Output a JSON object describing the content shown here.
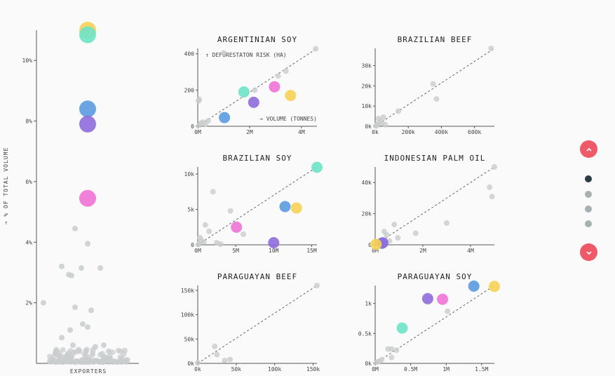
{
  "colors": {
    "yellow": "#f7d154",
    "teal": "#6ee3c6",
    "blue": "#5a9ae0",
    "purple": "#8e6bdb",
    "pink": "#ee72d6",
    "grey": "#c9cccd",
    "accent": "#ef5a68",
    "dot_active": "#2e3a42",
    "dot_inactive": "#a9b0b2"
  },
  "nav": {
    "up_icon": "chevron-up-icon",
    "down_icon": "chevron-down-icon",
    "active_index": 0,
    "dots": 4
  },
  "chart_data": [
    {
      "id": "overview",
      "type": "scatter",
      "title": "",
      "xlabel": "EXPORTERS",
      "ylabel": "→ % OF TOTAL VOLUME",
      "ylim": [
        0,
        11
      ],
      "yticks": [
        2,
        4,
        6,
        8,
        10
      ],
      "ytick_labels": [
        "2%",
        "4%",
        "6%",
        "8%",
        "10%"
      ],
      "highlight": [
        {
          "color": "yellow",
          "y": 11.0
        },
        {
          "color": "teal",
          "y": 10.85
        },
        {
          "color": "blue",
          "y": 8.4
        },
        {
          "color": "purple",
          "y": 7.9
        },
        {
          "color": "pink",
          "y": 5.45
        }
      ],
      "others": [
        {
          "x": 0.0,
          "y": 0
        }
      ]
    },
    {
      "id": "argentinian-soy",
      "type": "scatter",
      "title": "ARGENTINIAN SOY",
      "xlabel": "→ VOLUME (TONNES)",
      "ylabel": "↑ DEFORESTATON RISK (HA)",
      "xlim": [
        0,
        4600000
      ],
      "ylim": [
        0,
        430
      ],
      "xticks": [
        0,
        2000000,
        4000000
      ],
      "xtick_labels": [
        "0M",
        "2M",
        "4M"
      ],
      "yticks": [
        0,
        200,
        400
      ],
      "ytick_labels": [
        "0",
        "200",
        "400"
      ],
      "diagonal": true,
      "highlight": [
        {
          "color": "blue",
          "x": 1030000,
          "y": 48
        },
        {
          "color": "teal",
          "x": 1780000,
          "y": 190
        },
        {
          "color": "purple",
          "x": 2160000,
          "y": 132
        },
        {
          "color": "pink",
          "x": 2960000,
          "y": 218
        },
        {
          "color": "yellow",
          "x": 3580000,
          "y": 170
        }
      ],
      "others": [
        {
          "x": 30000,
          "y": 140
        },
        {
          "x": 60000,
          "y": 148
        },
        {
          "x": 400000,
          "y": 30
        },
        {
          "x": 120000,
          "y": 18
        },
        {
          "x": 300000,
          "y": 12
        },
        {
          "x": 60000,
          "y": 5
        },
        {
          "x": 1000000,
          "y": 405
        },
        {
          "x": 2200000,
          "y": 200
        },
        {
          "x": 3100000,
          "y": 278
        },
        {
          "x": 3400000,
          "y": 305
        },
        {
          "x": 4550000,
          "y": 428
        },
        {
          "x": 200000,
          "y": 22
        }
      ]
    },
    {
      "id": "brazilian-beef",
      "type": "scatter",
      "title": "BRAZILIAN BEEF",
      "xlim": [
        0,
        720000
      ],
      "ylim": [
        0,
        38500
      ],
      "xticks": [
        0,
        200000,
        400000,
        600000
      ],
      "xtick_labels": [
        "0k",
        "200k",
        "400k",
        "600k"
      ],
      "yticks": [
        0,
        10000,
        20000,
        30000
      ],
      "ytick_labels": [
        "0k",
        "10k",
        "20k",
        "30k"
      ],
      "diagonal": true,
      "highlight": [],
      "others": [
        {
          "x": 10000,
          "y": 600
        },
        {
          "x": 30000,
          "y": 2500
        },
        {
          "x": 50000,
          "y": 4500
        },
        {
          "x": 20000,
          "y": 3800
        },
        {
          "x": 15000,
          "y": 1200
        },
        {
          "x": 40000,
          "y": 1500
        },
        {
          "x": 140000,
          "y": 7500
        },
        {
          "x": 350000,
          "y": 21000
        },
        {
          "x": 370000,
          "y": 13500
        },
        {
          "x": 700000,
          "y": 38500
        },
        {
          "x": 5000,
          "y": 200
        },
        {
          "x": 60000,
          "y": 800
        }
      ]
    },
    {
      "id": "brazilian-soy",
      "type": "scatter",
      "title": "BRAZILIAN SOY",
      "xlim": [
        0,
        15700000
      ],
      "ylim": [
        0,
        11000
      ],
      "xticks": [
        0,
        5000000,
        10000000,
        15000000
      ],
      "xtick_labels": [
        "0M",
        "5M",
        "10M",
        "15M"
      ],
      "yticks": [
        0,
        5000,
        10000
      ],
      "ytick_labels": [
        "0",
        "5k",
        "10k"
      ],
      "diagonal": true,
      "highlight": [
        {
          "color": "teal",
          "x": 15700000,
          "y": 10950
        },
        {
          "color": "blue",
          "x": 11500000,
          "y": 5400
        },
        {
          "color": "yellow",
          "x": 13000000,
          "y": 5200
        },
        {
          "color": "pink",
          "x": 5100000,
          "y": 2500
        },
        {
          "color": "purple",
          "x": 10000000,
          "y": 300
        }
      ],
      "others": [
        {
          "x": 2000000,
          "y": 7500
        },
        {
          "x": 4300000,
          "y": 4800
        },
        {
          "x": 1000000,
          "y": 2800
        },
        {
          "x": 1500000,
          "y": 1900
        },
        {
          "x": 6000000,
          "y": 1500
        },
        {
          "x": 300000,
          "y": 1000
        },
        {
          "x": 200000,
          "y": 200
        },
        {
          "x": 800000,
          "y": 400
        },
        {
          "x": 2500000,
          "y": 300
        },
        {
          "x": 3000000,
          "y": 100
        },
        {
          "x": 500000,
          "y": 600
        },
        {
          "x": 100000,
          "y": 50
        }
      ]
    },
    {
      "id": "indonesian-palm-oil",
      "type": "scatter",
      "title": "INDONESIAN PALM OIL",
      "xlim": [
        0,
        5000000
      ],
      "ylim": [
        0,
        50000
      ],
      "xticks": [
        0,
        2000000,
        4000000
      ],
      "xtick_labels": [
        "0M",
        "2M",
        "4M"
      ],
      "yticks": [
        0,
        20000,
        40000
      ],
      "ytick_labels": [
        "0",
        "20k",
        "40k"
      ],
      "diagonal": true,
      "highlight": [
        {
          "color": "blue",
          "x": 280000,
          "y": 1000
        },
        {
          "color": "purple",
          "x": 320000,
          "y": 1300
        },
        {
          "color": "yellow",
          "x": 40000,
          "y": 300
        }
      ],
      "others": [
        {
          "x": 380000,
          "y": 8500
        },
        {
          "x": 480000,
          "y": 6500
        },
        {
          "x": 800000,
          "y": 13000
        },
        {
          "x": 950000,
          "y": 4500
        },
        {
          "x": 1700000,
          "y": 7500
        },
        {
          "x": 3000000,
          "y": 14000
        },
        {
          "x": 4800000,
          "y": 37000
        },
        {
          "x": 4900000,
          "y": 31000
        },
        {
          "x": 5000000,
          "y": 50000
        },
        {
          "x": 150000,
          "y": 1500
        },
        {
          "x": 600000,
          "y": 2500
        }
      ]
    },
    {
      "id": "paraguayan-beef",
      "type": "scatter",
      "title": "PARAGUAYAN BEEF",
      "xlim": [
        0,
        155000
      ],
      "ylim": [
        0,
        160000
      ],
      "xticks": [
        0,
        50000,
        100000,
        150000
      ],
      "xtick_labels": [
        "0k",
        "50k",
        "100k",
        "150k"
      ],
      "yticks": [
        0,
        50000,
        100000,
        150000
      ],
      "ytick_labels": [
        "0k",
        "50k",
        "100k",
        "150k"
      ],
      "diagonal": true,
      "highlight": [],
      "others": [
        {
          "x": 0,
          "y": 1000
        },
        {
          "x": 22000,
          "y": 35000
        },
        {
          "x": 25000,
          "y": 18000
        },
        {
          "x": 35000,
          "y": 6000
        },
        {
          "x": 42000,
          "y": 8000
        },
        {
          "x": 155000,
          "y": 160000
        }
      ]
    },
    {
      "id": "paraguayan-soy",
      "type": "scatter",
      "title": "PARAGUAYAN SOY",
      "xlim": [
        0,
        1680000
      ],
      "ylim": [
        0,
        1300
      ],
      "xticks": [
        0,
        500000,
        1000000,
        1500000
      ],
      "xtick_labels": [
        "0M",
        "0.5M",
        "1M",
        "1.5M"
      ],
      "yticks": [
        0,
        500,
        1000
      ],
      "ytick_labels": [
        "0k",
        "0.5k",
        "1k"
      ],
      "diagonal": true,
      "highlight": [
        {
          "color": "blue",
          "x": 1390000,
          "y": 1290
        },
        {
          "color": "yellow",
          "x": 1680000,
          "y": 1285
        },
        {
          "color": "purple",
          "x": 740000,
          "y": 1080
        },
        {
          "color": "pink",
          "x": 950000,
          "y": 1070
        },
        {
          "color": "teal",
          "x": 380000,
          "y": 590
        }
      ],
      "others": [
        {
          "x": 1020000,
          "y": 870
        },
        {
          "x": 180000,
          "y": 240
        },
        {
          "x": 230000,
          "y": 240
        },
        {
          "x": 90000,
          "y": 60
        },
        {
          "x": 20000,
          "y": 20
        },
        {
          "x": 230000,
          "y": 100
        },
        {
          "x": 300000,
          "y": 220
        },
        {
          "x": 50000,
          "y": 30
        }
      ]
    }
  ]
}
